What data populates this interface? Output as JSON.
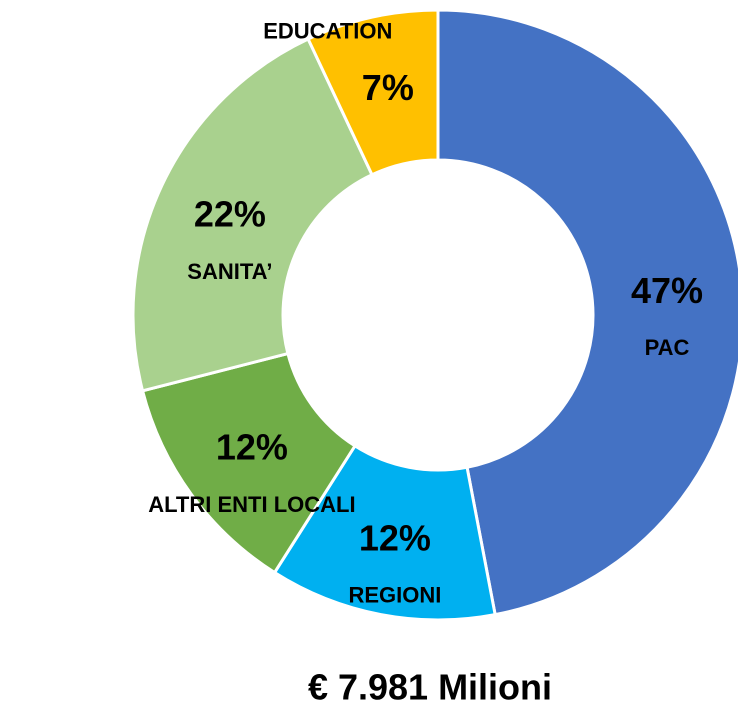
{
  "chart_data": {
    "type": "donut",
    "categories": [
      "PAC",
      "REGIONI",
      "ALTRI ENTI LOCALI",
      "SANITA’",
      "EDUCATION"
    ],
    "values": [
      47,
      12,
      12,
      22,
      7
    ],
    "value_labels": [
      "47%",
      "12%",
      "12%",
      "22%",
      "7%"
    ],
    "colors": [
      "#4472c4",
      "#00b0f0",
      "#70ad47",
      "#a9d18e",
      "#ffc000"
    ],
    "total": "€ 7.981 Milioni"
  }
}
